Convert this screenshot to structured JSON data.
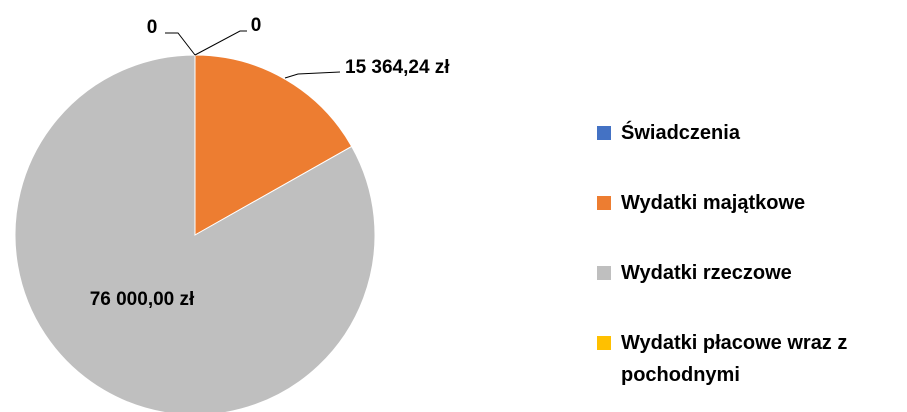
{
  "chart_data": {
    "type": "pie",
    "categories": [
      "Świadczenia",
      "Wydatki majątkowe",
      "Wydatki rzeczowe",
      "Wydatki płacowe wraz z pochodnymi"
    ],
    "values": [
      0,
      15364.24,
      76000,
      0
    ],
    "value_labels": [
      "0",
      "15 364,24 zł",
      "76 000,00 zł",
      "0"
    ],
    "colors": [
      "#4472c4",
      "#ed7d31",
      "#bfbfbf",
      "#ffc000"
    ],
    "legend": "right"
  }
}
